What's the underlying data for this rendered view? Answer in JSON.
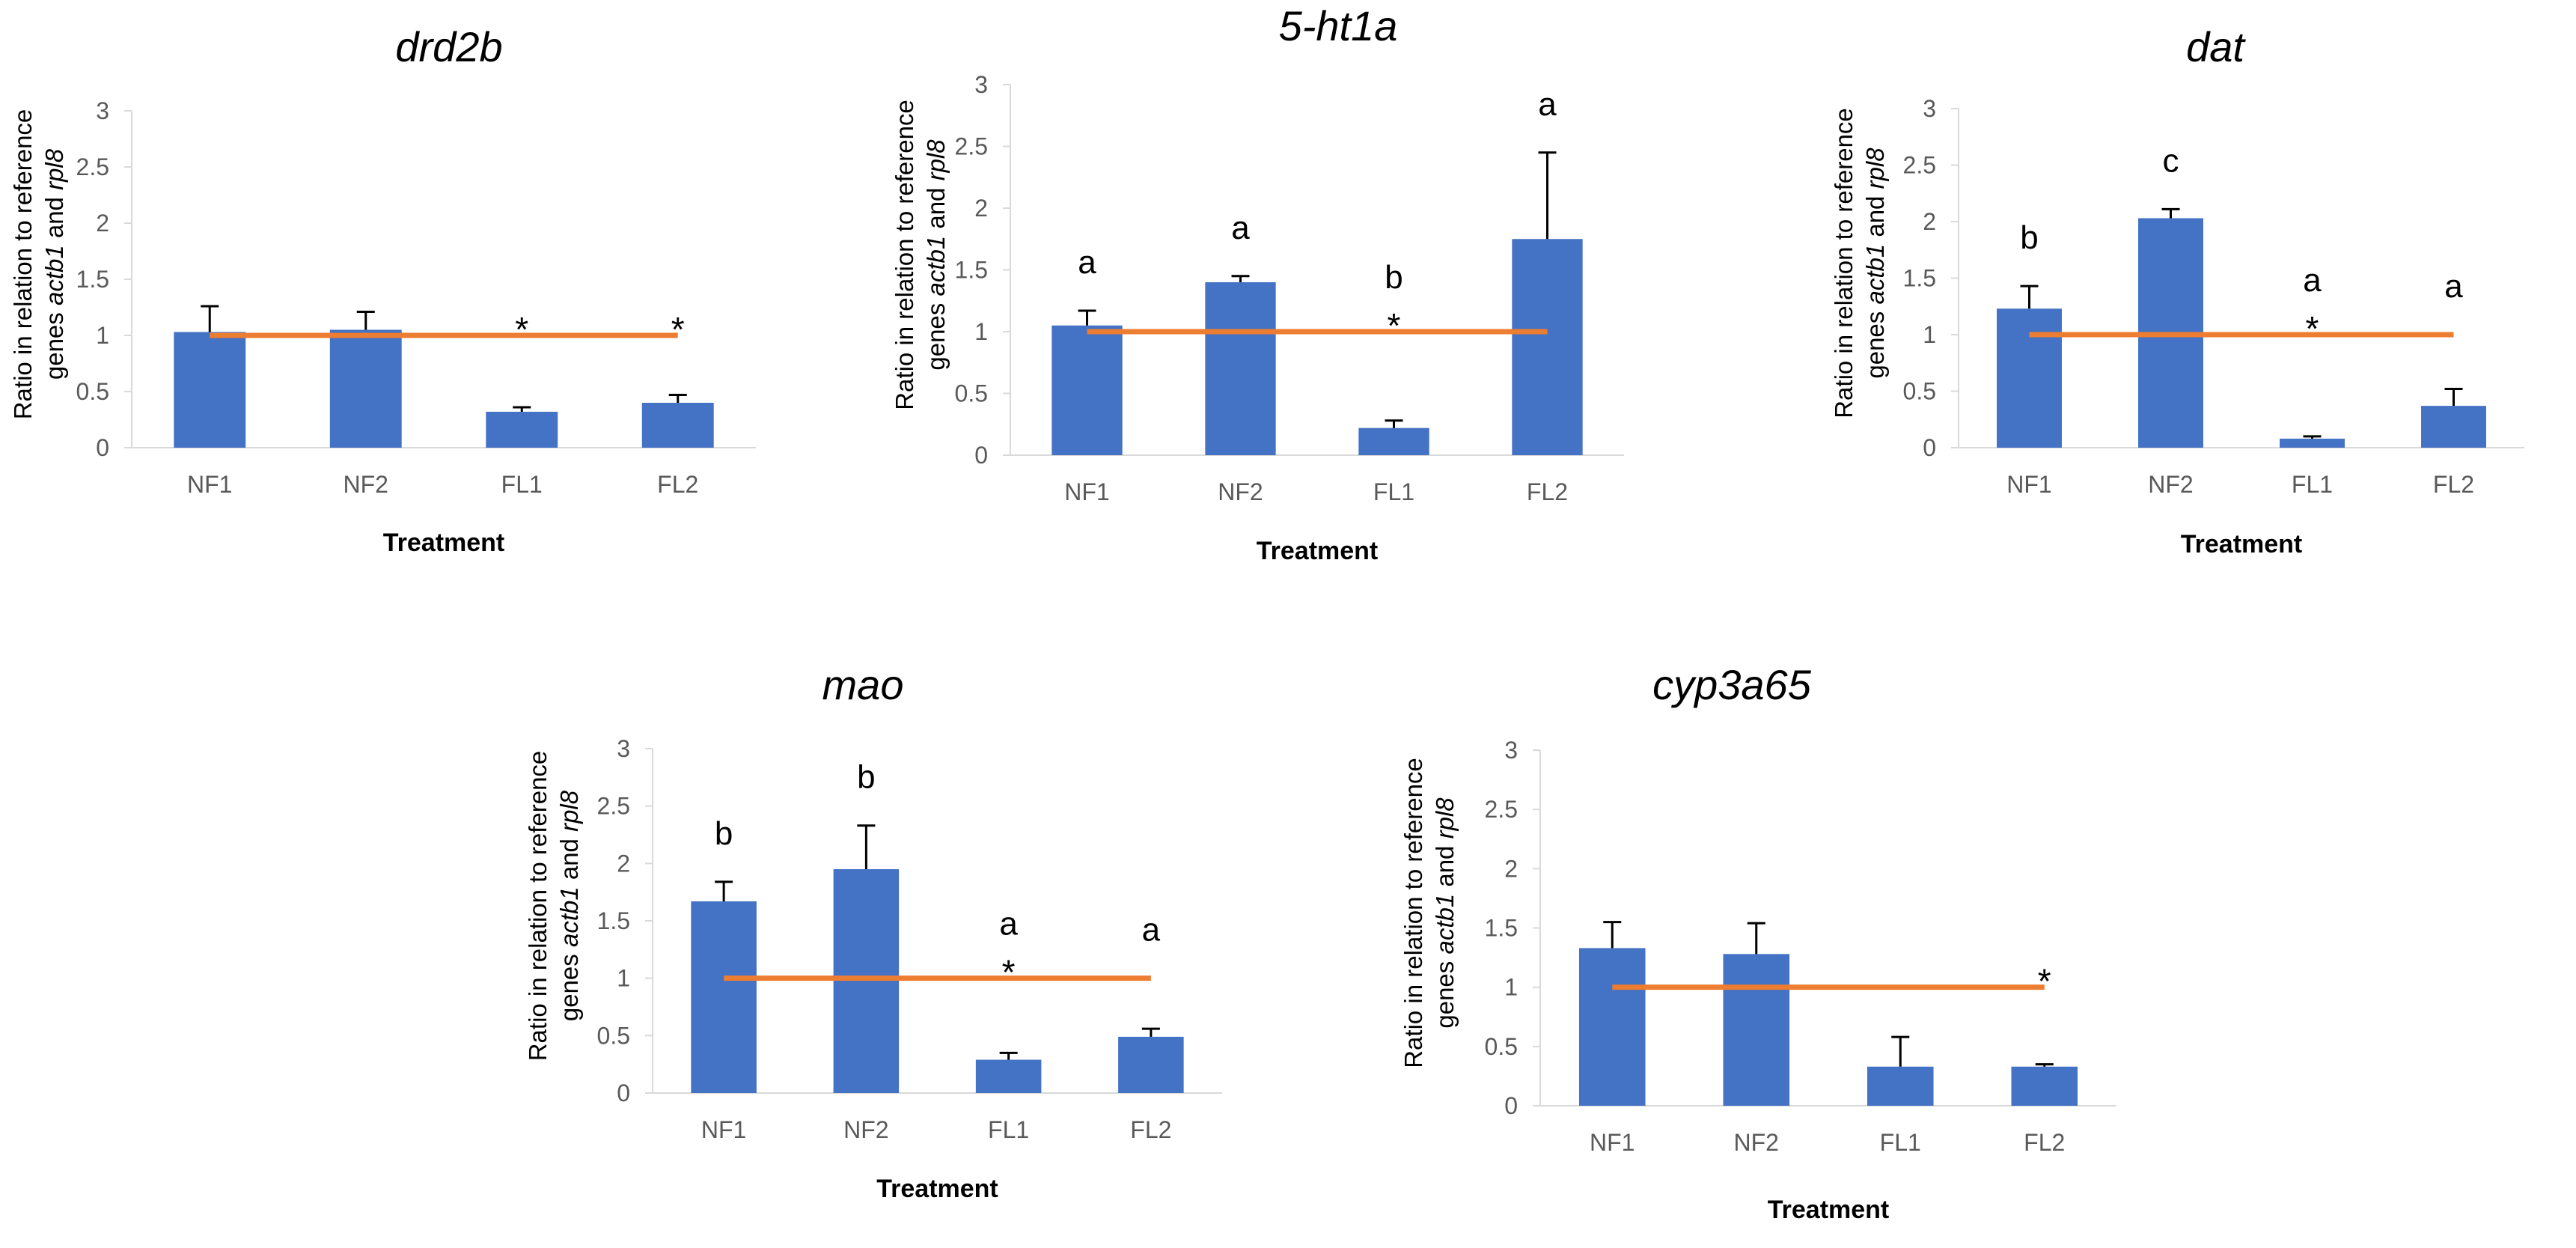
{
  "chart_data": [
    {
      "type": "bar",
      "title": "drd2b",
      "xlabel": "Treatment",
      "ylabel_parts": [
        "Ratio in relation to reference",
        "genes ",
        "actb1",
        " and ",
        "rpl8"
      ],
      "categories": [
        "NF1",
        "NF2",
        "FL1",
        "FL2"
      ],
      "values": [
        1.03,
        1.05,
        0.32,
        0.4
      ],
      "errors": [
        0.23,
        0.16,
        0.04,
        0.07
      ],
      "letters": [
        "",
        "",
        "",
        ""
      ],
      "stars": [
        "",
        "",
        "*",
        "*"
      ],
      "reference_line": 1,
      "ylim": [
        0,
        3
      ],
      "yticks": [
        "0",
        "0.5",
        "1",
        "1.5",
        "2",
        "2.5",
        "3"
      ],
      "bar_color": "#4472c4",
      "line_color": "#ed7d31"
    },
    {
      "type": "bar",
      "title": "5-ht1a",
      "xlabel": "Treatment",
      "ylabel_parts": [
        "Ratio in relation to reference",
        "genes ",
        "actb1",
        " and ",
        "rpl8"
      ],
      "categories": [
        "NF1",
        "NF2",
        "FL1",
        "FL2"
      ],
      "values": [
        1.05,
        1.4,
        0.22,
        1.75
      ],
      "errors": [
        0.12,
        0.05,
        0.06,
        0.7
      ],
      "letters": [
        "a",
        "a",
        "b",
        "a"
      ],
      "stars": [
        "",
        "",
        "*",
        ""
      ],
      "reference_line": 1,
      "ylim": [
        0,
        3
      ],
      "yticks": [
        "0",
        "0.5",
        "1",
        "1.5",
        "2",
        "2.5",
        "3"
      ],
      "bar_color": "#4472c4",
      "line_color": "#ed7d31"
    },
    {
      "type": "bar",
      "title": "dat",
      "xlabel": "Treatment",
      "ylabel_parts": [
        "Ratio in relation to reference",
        "genes ",
        "actb1",
        " and ",
        "rpl8"
      ],
      "categories": [
        "NF1",
        "NF2",
        "FL1",
        "FL2"
      ],
      "values": [
        1.23,
        2.03,
        0.08,
        0.37
      ],
      "errors": [
        0.2,
        0.08,
        0.02,
        0.15
      ],
      "letters": [
        "b",
        "c",
        "a",
        "a"
      ],
      "stars": [
        "",
        "",
        "*",
        ""
      ],
      "reference_line": 1,
      "ylim": [
        0,
        3
      ],
      "yticks": [
        "0",
        "0.5",
        "1",
        "1.5",
        "2",
        "2.5",
        "3"
      ],
      "bar_color": "#4472c4",
      "line_color": "#ed7d31"
    },
    {
      "type": "bar",
      "title": "mao",
      "xlabel": "Treatment",
      "ylabel_parts": [
        "Ratio in relation to reference",
        "genes ",
        "actb1",
        " and ",
        "rpl8"
      ],
      "categories": [
        "NF1",
        "NF2",
        "FL1",
        "FL2"
      ],
      "values": [
        1.67,
        1.95,
        0.29,
        0.49
      ],
      "errors": [
        0.17,
        0.38,
        0.06,
        0.07
      ],
      "letters": [
        "b",
        "b",
        "a",
        "a"
      ],
      "stars": [
        "",
        "",
        "*",
        ""
      ],
      "reference_line": 1,
      "ylim": [
        0,
        3
      ],
      "yticks": [
        "0",
        "0.5",
        "1",
        "1.5",
        "2",
        "2.5",
        "3"
      ],
      "bar_color": "#4472c4",
      "line_color": "#ed7d31"
    },
    {
      "type": "bar",
      "title": "cyp3a65",
      "xlabel": "Treatment",
      "ylabel_parts": [
        "Ratio in relation to reference",
        "genes ",
        "actb1",
        " and ",
        "rpl8"
      ],
      "categories": [
        "NF1",
        "NF2",
        "FL1",
        "FL2"
      ],
      "values": [
        1.33,
        1.28,
        0.33,
        0.33
      ],
      "errors": [
        0.22,
        0.26,
        0.25,
        0.02
      ],
      "letters": [
        "",
        "",
        "",
        ""
      ],
      "stars": [
        "",
        "",
        "",
        "*"
      ],
      "reference_line": 1,
      "ylim": [
        0,
        3
      ],
      "yticks": [
        "0",
        "0.5",
        "1",
        "1.5",
        "2",
        "2.5",
        "3"
      ],
      "bar_color": "#4472c4",
      "line_color": "#ed7d31"
    }
  ]
}
